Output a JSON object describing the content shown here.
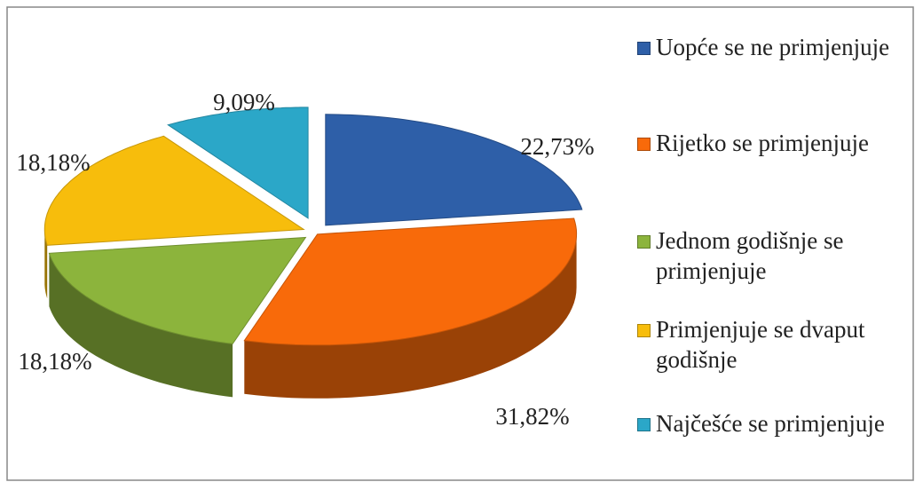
{
  "chart_data": {
    "type": "pie",
    "categories": [
      "Uopće se ne primjenjuje",
      "Rijetko se primjenjuje",
      "Jednom godišnje se primjenjuje",
      "Primjenjuje se dvaput godišnje",
      "Najčešće se primjenjuje"
    ],
    "values": [
      22.73,
      31.82,
      18.18,
      18.18,
      9.09
    ],
    "value_labels": [
      "22,73%",
      "31,82%",
      "18,18%",
      "18,18%",
      "9,09%"
    ],
    "colors": [
      "#2e5fa8",
      "#f86a0a",
      "#8cb43c",
      "#f7bd0c",
      "#2ba7c8"
    ],
    "legend": "right"
  }
}
